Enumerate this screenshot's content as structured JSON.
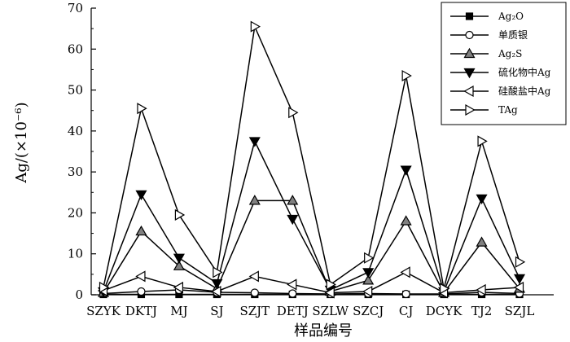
{
  "chart_data": {
    "type": "line",
    "xlabel": "样品编号",
    "ylabel": "Ag/(×10⁻⁶)",
    "ylim": [
      0,
      70
    ],
    "yticks": [
      0,
      10,
      20,
      30,
      40,
      50,
      60,
      70
    ],
    "grid": false,
    "legend_position": "top-right",
    "categories": [
      "SZYK",
      "DKTJ",
      "MJ",
      "SJ",
      "SZJT",
      "DETJ",
      "SZLW",
      "SZCJ",
      "CJ",
      "DCYK",
      "TJ2",
      "SZJL"
    ],
    "series": [
      {
        "name": "Ag₂O",
        "marker": "square",
        "values": [
          0.1,
          0.1,
          0.1,
          0.1,
          0.1,
          0.1,
          0.1,
          0.1,
          0.1,
          0.1,
          0.1,
          0.1
        ]
      },
      {
        "name": "单质银",
        "marker": "circle",
        "values": [
          0.3,
          0.8,
          1.2,
          0.6,
          0.5,
          0.3,
          0.2,
          0.3,
          0.2,
          0.2,
          0.6,
          0.3
        ]
      },
      {
        "name": "Ag₂S",
        "marker": "triangle-up",
        "values": [
          0.5,
          15.5,
          7.0,
          1.5,
          23.0,
          23.0,
          0.8,
          3.5,
          18.0,
          0.5,
          12.8,
          1.5
        ]
      },
      {
        "name": "硫化物中Ag",
        "marker": "triangle-down",
        "values": [
          0.8,
          24.5,
          9.0,
          2.8,
          37.5,
          18.5,
          1.2,
          5.5,
          30.5,
          0.8,
          23.5,
          4.0
        ]
      },
      {
        "name": "硅酸盐中Ag",
        "marker": "triangle-left",
        "values": [
          1.0,
          4.5,
          1.8,
          0.8,
          4.5,
          2.5,
          0.5,
          0.8,
          5.5,
          0.5,
          1.2,
          1.8
        ]
      },
      {
        "name": "TAg",
        "marker": "triangle-right",
        "values": [
          1.8,
          45.5,
          19.5,
          5.5,
          65.5,
          44.5,
          2.5,
          9.0,
          53.5,
          1.5,
          37.5,
          8.0
        ]
      }
    ]
  }
}
